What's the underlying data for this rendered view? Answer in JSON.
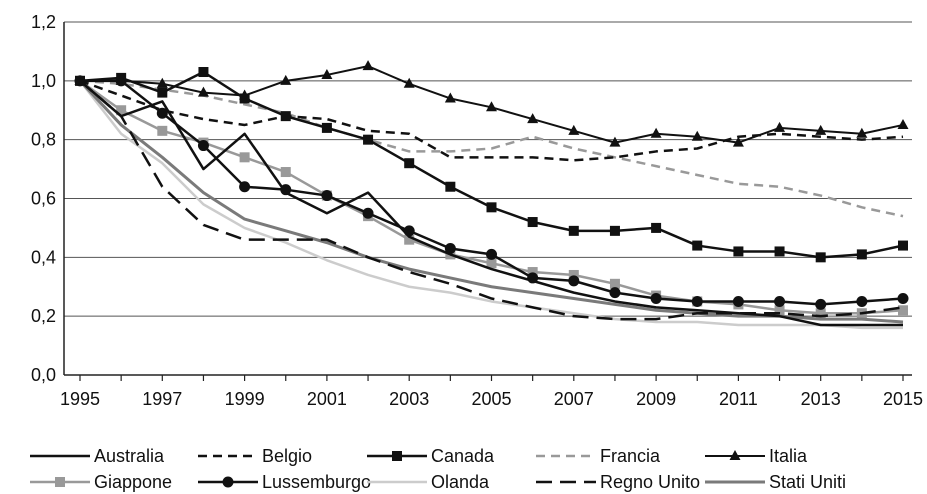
{
  "chart_data": {
    "type": "line",
    "title": "",
    "xlabel": "",
    "ylabel": "",
    "x": [
      1995,
      1996,
      1997,
      1998,
      1999,
      2000,
      2001,
      2002,
      2003,
      2004,
      2005,
      2006,
      2007,
      2008,
      2009,
      2010,
      2011,
      2012,
      2013,
      2014,
      2015
    ],
    "xticks": [
      "1995",
      "1997",
      "1999",
      "2001",
      "2003",
      "2005",
      "2007",
      "2009",
      "2011",
      "2013",
      "2015"
    ],
    "yticks": [
      "0,0",
      "0,2",
      "0,4",
      "0,6",
      "0,8",
      "1,0",
      "1,2"
    ],
    "ylim": [
      0,
      1.2
    ],
    "grid": true,
    "legend_position": "bottom",
    "series": [
      {
        "name": "Australia",
        "color": "#111111",
        "dash": "solid",
        "marker": "none",
        "width": 2.5,
        "values": [
          1.0,
          0.88,
          0.93,
          0.7,
          0.82,
          0.62,
          0.55,
          0.62,
          0.47,
          0.41,
          0.36,
          0.32,
          0.28,
          0.25,
          0.23,
          0.22,
          0.21,
          0.2,
          0.17,
          0.17,
          0.17
        ]
      },
      {
        "name": "Belgio",
        "color": "#111111",
        "dash": "dashed",
        "marker": "none",
        "width": 2.5,
        "values": [
          1.0,
          0.95,
          0.9,
          0.87,
          0.85,
          0.88,
          0.87,
          0.83,
          0.82,
          0.74,
          0.74,
          0.74,
          0.73,
          0.74,
          0.76,
          0.77,
          0.81,
          0.82,
          0.81,
          0.8,
          0.81
        ]
      },
      {
        "name": "Canada",
        "color": "#111111",
        "dash": "solid",
        "marker": "square",
        "width": 2.5,
        "values": [
          1.0,
          1.01,
          0.96,
          1.03,
          0.94,
          0.88,
          0.84,
          0.8,
          0.72,
          0.64,
          0.57,
          0.52,
          0.49,
          0.49,
          0.5,
          0.44,
          0.42,
          0.42,
          0.4,
          0.41,
          0.44
        ]
      },
      {
        "name": "Francia",
        "color": "#999999",
        "dash": "dashed",
        "marker": "none",
        "width": 2.5,
        "values": [
          1.0,
          0.99,
          0.97,
          0.95,
          0.92,
          0.89,
          0.84,
          0.8,
          0.76,
          0.76,
          0.77,
          0.81,
          0.77,
          0.74,
          0.71,
          0.68,
          0.65,
          0.64,
          0.61,
          0.57,
          0.54
        ]
      },
      {
        "name": "Italia",
        "color": "#111111",
        "dash": "solid",
        "marker": "triangle",
        "width": 2,
        "values": [
          1.0,
          1.0,
          0.99,
          0.96,
          0.95,
          1.0,
          1.02,
          1.05,
          0.99,
          0.94,
          0.91,
          0.87,
          0.83,
          0.79,
          0.82,
          0.81,
          0.79,
          0.84,
          0.83,
          0.82,
          0.85
        ]
      },
      {
        "name": "Giappone",
        "color": "#999999",
        "dash": "solid",
        "marker": "square",
        "width": 2.5,
        "values": [
          1.0,
          0.9,
          0.83,
          0.79,
          0.74,
          0.69,
          0.61,
          0.54,
          0.46,
          0.41,
          0.38,
          0.35,
          0.34,
          0.31,
          0.27,
          0.25,
          0.24,
          0.22,
          0.21,
          0.21,
          0.22
        ]
      },
      {
        "name": "Lussemburgo",
        "color": "#111111",
        "dash": "solid",
        "marker": "circle",
        "width": 2.5,
        "values": [
          1.0,
          1.0,
          0.89,
          0.78,
          0.64,
          0.63,
          0.61,
          0.55,
          0.49,
          0.43,
          0.41,
          0.33,
          0.32,
          0.28,
          0.26,
          0.25,
          0.25,
          0.25,
          0.24,
          0.25,
          0.26
        ]
      },
      {
        "name": "Olanda",
        "color": "#cccccc",
        "dash": "solid",
        "marker": "none",
        "width": 2.5,
        "values": [
          1.0,
          0.82,
          0.72,
          0.58,
          0.5,
          0.45,
          0.39,
          0.34,
          0.3,
          0.28,
          0.25,
          0.23,
          0.21,
          0.19,
          0.18,
          0.18,
          0.17,
          0.17,
          0.17,
          0.16,
          0.16
        ]
      },
      {
        "name": "Regno Unito",
        "color": "#111111",
        "dash": "longdash",
        "marker": "none",
        "width": 2.5,
        "values": [
          1.0,
          0.88,
          0.64,
          0.51,
          0.46,
          0.46,
          0.46,
          0.4,
          0.35,
          0.31,
          0.26,
          0.23,
          0.2,
          0.19,
          0.19,
          0.21,
          0.21,
          0.21,
          0.2,
          0.21,
          0.23
        ]
      },
      {
        "name": "Stati Uniti",
        "color": "#7a7a7a",
        "dash": "solid",
        "marker": "none",
        "width": 3,
        "values": [
          1.0,
          0.85,
          0.74,
          0.62,
          0.53,
          0.49,
          0.45,
          0.4,
          0.36,
          0.33,
          0.3,
          0.28,
          0.26,
          0.24,
          0.22,
          0.21,
          0.2,
          0.2,
          0.19,
          0.19,
          0.18
        ]
      }
    ]
  }
}
